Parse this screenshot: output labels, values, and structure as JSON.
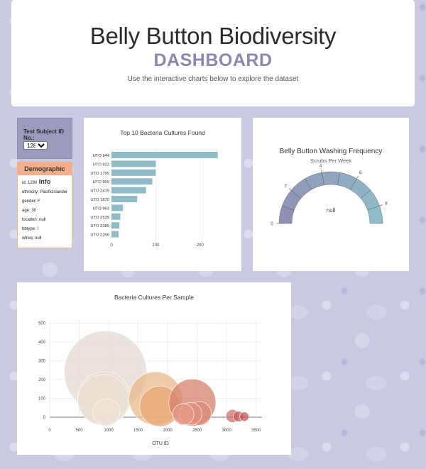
{
  "header": {
    "title": "Belly Button Biodiversity",
    "subtitle": "DASHBOARD",
    "tagline": "Use the interactive charts below to explore the dataset"
  },
  "selector": {
    "label": "Test Subject ID No.:",
    "selected": "1280"
  },
  "demographics": {
    "heading": "Demographic Info",
    "lines": [
      "id: 1280",
      "ethnicity: Pacificlslander",
      "gender: F",
      "age: 30",
      "location: null",
      "bbtype: I",
      "wfreq: null"
    ]
  },
  "colors": {
    "bar": "#8fbcc8",
    "gauge_left": "#8f90b4",
    "gauge_right": "#8fbcc8",
    "demo_heading": "#f4ae89",
    "selector_bg": "#9c9bbd"
  },
  "chart_data": [
    {
      "type": "bar",
      "orientation": "horizontal",
      "title": "Top 10 Bacteria Cultures Found",
      "categories": [
        "UTO 944",
        "UTO 922",
        "UTO 1795",
        "UTO 909",
        "UTO 2419",
        "UTO 1870",
        "UTO 963",
        "UTO 2539",
        "UTO 2389",
        "UTO 2266"
      ],
      "values": [
        240,
        100,
        100,
        92,
        78,
        58,
        26,
        20,
        18,
        16
      ],
      "xticks": [
        0,
        100,
        200
      ],
      "xlim": [
        0,
        250
      ]
    },
    {
      "type": "gauge",
      "title": "Belly Button Washing Frequency",
      "subtitle": "Scrubs Per Week",
      "range": [
        0,
        9
      ],
      "ticks": [
        0,
        2,
        4,
        6,
        8
      ],
      "value": "null"
    },
    {
      "type": "scatter",
      "title": "Bacteria Cultures Per Sample",
      "xlabel": "OTU ID",
      "xlim": [
        0,
        3600
      ],
      "ylim": [
        0,
        520
      ],
      "xticks": [
        0,
        500,
        1000,
        1500,
        2000,
        2500,
        3000,
        3500
      ],
      "yticks": [
        0,
        100,
        200,
        300,
        400,
        500
      ],
      "grid": true,
      "points": [
        {
          "x": 944,
          "y": 240,
          "color": "#e3d9d3"
        },
        {
          "x": 922,
          "y": 100,
          "color": "#e7ddd2"
        },
        {
          "x": 909,
          "y": 92,
          "color": "#ebe1d3"
        },
        {
          "x": 963,
          "y": 26,
          "color": "#efe3d5"
        },
        {
          "x": 1795,
          "y": 100,
          "color": "#eab98c"
        },
        {
          "x": 1870,
          "y": 58,
          "color": "#eaa774"
        },
        {
          "x": 2419,
          "y": 78,
          "color": "#d5826f"
        },
        {
          "x": 2539,
          "y": 20,
          "color": "#dd8a7a"
        },
        {
          "x": 2389,
          "y": 18,
          "color": "#e0907e"
        },
        {
          "x": 2266,
          "y": 16,
          "color": "#e59a86"
        },
        {
          "x": 3100,
          "y": 6,
          "color": "#cf6f6f"
        },
        {
          "x": 3200,
          "y": 4,
          "color": "#c95f60"
        },
        {
          "x": 3300,
          "y": 3,
          "color": "#c65a5c"
        }
      ]
    }
  ]
}
